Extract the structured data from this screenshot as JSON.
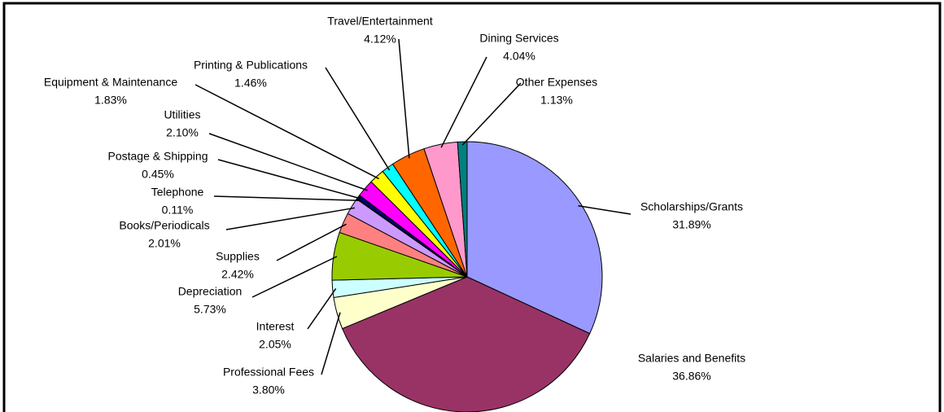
{
  "chart_data": {
    "type": "pie",
    "categories": [
      "Scholarships/Grants",
      "Salaries and Benefits",
      "Professional Fees",
      "Interest",
      "Depreciation",
      "Supplies",
      "Books/Periodicals",
      "Telephone",
      "Postage & Shipping",
      "Utilities",
      "Equipment & Maintenance",
      "Printing & Publications",
      "Travel/Entertainment",
      "Dining Services",
      "Other Expenses"
    ],
    "values": [
      31.89,
      36.86,
      3.8,
      2.05,
      5.73,
      2.42,
      2.01,
      0.11,
      0.45,
      2.1,
      1.83,
      1.46,
      4.12,
      4.04,
      1.13
    ],
    "value_labels": [
      "31.89%",
      "36.86%",
      "3.80%",
      "2.05%",
      "5.73%",
      "2.42%",
      "2.01%",
      "0.11%",
      "0.45%",
      "2.10%",
      "1.83%",
      "1.46%",
      "4.12%",
      "4.04%",
      "1.13%"
    ],
    "colors": [
      "#9999ff",
      "#993366",
      "#ffffcc",
      "#ccffff",
      "#99cc00",
      "#ff8080",
      "#cc99ff",
      "#333399",
      "#000080",
      "#ff00ff",
      "#ffff00",
      "#00ffff",
      "#ff6600",
      "#ff99cc",
      "#008080"
    ]
  }
}
